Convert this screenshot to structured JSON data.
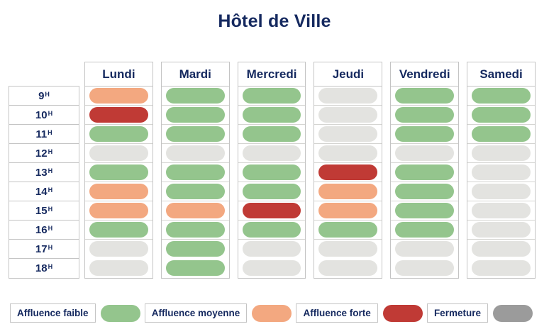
{
  "title": "Hôtel de Ville",
  "colors": {
    "navy": "#15295f",
    "border": "#c4c4c4",
    "row_line": "#d4d4d1",
    "background": "#ffffff"
  },
  "chart_data": {
    "type": "heatmap",
    "title": "Hôtel de Ville",
    "x_categories": [
      "Lundi",
      "Mardi",
      "Mercredi",
      "Jeudi",
      "Vendredi",
      "Samedi"
    ],
    "y_categories": [
      "9",
      "10",
      "11",
      "12",
      "13",
      "14",
      "15",
      "16",
      "17",
      "18"
    ],
    "y_tick_suffix": "H",
    "legend_position": "bottom",
    "grid": "table-borders",
    "levels": {
      "faible": {
        "label": "Affluence faible",
        "cell_color": "#94c58d",
        "legend_color": "#94c58d"
      },
      "moyenne": {
        "label": "Affluence moyenne",
        "cell_color": "#f3a880",
        "legend_color": "#f3a880"
      },
      "forte": {
        "label": "Affluence forte",
        "cell_color": "#c03a35",
        "legend_color": "#c03a35"
      },
      "fermeture": {
        "label": "Fermeture",
        "cell_color": "#e3e3e0",
        "legend_color": "#9b9b9b"
      }
    },
    "legend_order": [
      "faible",
      "moyenne",
      "forte",
      "fermeture"
    ],
    "values": {
      "Lundi": [
        "moyenne",
        "forte",
        "faible",
        "fermeture",
        "faible",
        "moyenne",
        "moyenne",
        "faible",
        "fermeture",
        "fermeture"
      ],
      "Mardi": [
        "faible",
        "faible",
        "faible",
        "fermeture",
        "faible",
        "faible",
        "moyenne",
        "faible",
        "faible",
        "faible"
      ],
      "Mercredi": [
        "faible",
        "faible",
        "faible",
        "fermeture",
        "faible",
        "faible",
        "forte",
        "faible",
        "fermeture",
        "fermeture"
      ],
      "Jeudi": [
        "fermeture",
        "fermeture",
        "fermeture",
        "fermeture",
        "forte",
        "moyenne",
        "moyenne",
        "faible",
        "fermeture",
        "fermeture"
      ],
      "Vendredi": [
        "faible",
        "faible",
        "faible",
        "fermeture",
        "faible",
        "faible",
        "faible",
        "faible",
        "fermeture",
        "fermeture"
      ],
      "Samedi": [
        "faible",
        "faible",
        "faible",
        "fermeture",
        "fermeture",
        "fermeture",
        "fermeture",
        "fermeture",
        "fermeture",
        "fermeture"
      ]
    }
  }
}
